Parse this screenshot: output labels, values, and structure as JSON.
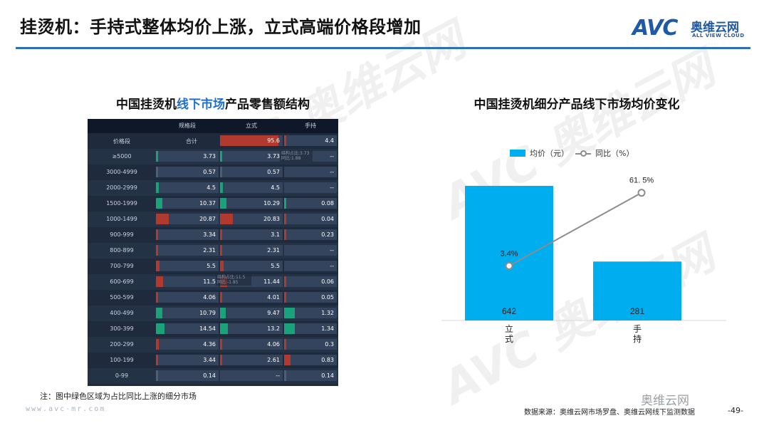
{
  "header": {
    "title": "挂烫机：手持式整体均价上涨，立式高端价格段增加",
    "logo_text": "AVC",
    "logo_cn": "奥维云网",
    "logo_en": "ALL VIEW CLOUD",
    "rule_color": "#2f6fb5"
  },
  "left_panel": {
    "title_pre": "中国挂烫机",
    "title_hl": "线下市场",
    "title_post": "产品零售额结构",
    "columns": [
      "规格段",
      "立式",
      "手持"
    ],
    "rows": [
      {
        "label": "价格段",
        "c1": "合计",
        "c2": "95.6",
        "c3": "4.4"
      },
      {
        "label": "≥5000",
        "c1": "3.73",
        "c2": "3.73",
        "c3": "--"
      },
      {
        "label": "3000-4999",
        "c1": "0.57",
        "c2": "0.57",
        "c3": "--"
      },
      {
        "label": "2000-2999",
        "c1": "4.5",
        "c2": "4.5",
        "c3": "--"
      },
      {
        "label": "1500-1999",
        "c1": "10.37",
        "c2": "10.29",
        "c3": "0.08"
      },
      {
        "label": "1000-1499",
        "c1": "20.87",
        "c2": "20.83",
        "c3": "0.04"
      },
      {
        "label": "900-999",
        "c1": "3.34",
        "c2": "3.1",
        "c3": "0.23"
      },
      {
        "label": "800-899",
        "c1": "2.31",
        "c2": "2.31",
        "c3": "--"
      },
      {
        "label": "700-799",
        "c1": "5.5",
        "c2": "5.5",
        "c3": "--"
      },
      {
        "label": "600-699",
        "c1": "11.5",
        "c2": "11.44",
        "c3": "0.06"
      },
      {
        "label": "500-599",
        "c1": "4.06",
        "c2": "4.01",
        "c3": "0.05"
      },
      {
        "label": "400-499",
        "c1": "10.79",
        "c2": "9.47",
        "c3": "1.32"
      },
      {
        "label": "300-399",
        "c1": "14.54",
        "c2": "13.2",
        "c3": "1.34"
      },
      {
        "label": "200-299",
        "c1": "4.36",
        "c2": "4.06",
        "c3": "0.3"
      },
      {
        "label": "100-199",
        "c1": "3.44",
        "c2": "2.61",
        "c3": "0.83"
      },
      {
        "label": "0-99",
        "c1": "0.14",
        "c2": "--",
        "c3": "0.14"
      }
    ],
    "row_trend": [
      "",
      "green",
      "",
      "green",
      "green",
      "red",
      "red",
      "red",
      "red",
      "red",
      "red",
      "green",
      "green",
      "red",
      "red",
      ""
    ],
    "tooltip1": "结构占比:3.73 同比:1.88",
    "tooltip2": "结构占比:11.5 同比:-1.85",
    "note": "注：图中绿色区域为占比同比上涨的细分市场",
    "site": "www.avc-mr.com",
    "colors": {
      "up": "#1aa37a",
      "down": "#b03a2e",
      "total": "#b03a2e"
    }
  },
  "chart_data": {
    "type": "bar",
    "title": "中国挂烫机细分产品线下市场均价变化",
    "categories": [
      "立式",
      "手持"
    ],
    "series": [
      {
        "name": "均价（元）",
        "type": "bar",
        "values": [
          642,
          281
        ],
        "color": "#00adef"
      },
      {
        "name": "同比（%）",
        "type": "line",
        "values": [
          3.4,
          61.5
        ],
        "labels": [
          "3.4%",
          "61. 5%"
        ],
        "color": "#8c8c8c"
      }
    ],
    "ylim": [
      0,
      720
    ],
    "y2lim": [
      -40,
      80
    ],
    "legend_position": "top",
    "grid": false
  },
  "footer": {
    "source": "数据来源：奥维云网市场罗盘、奥维云网线下监测数据",
    "page": "-49-",
    "wechat": "奥维云网"
  }
}
